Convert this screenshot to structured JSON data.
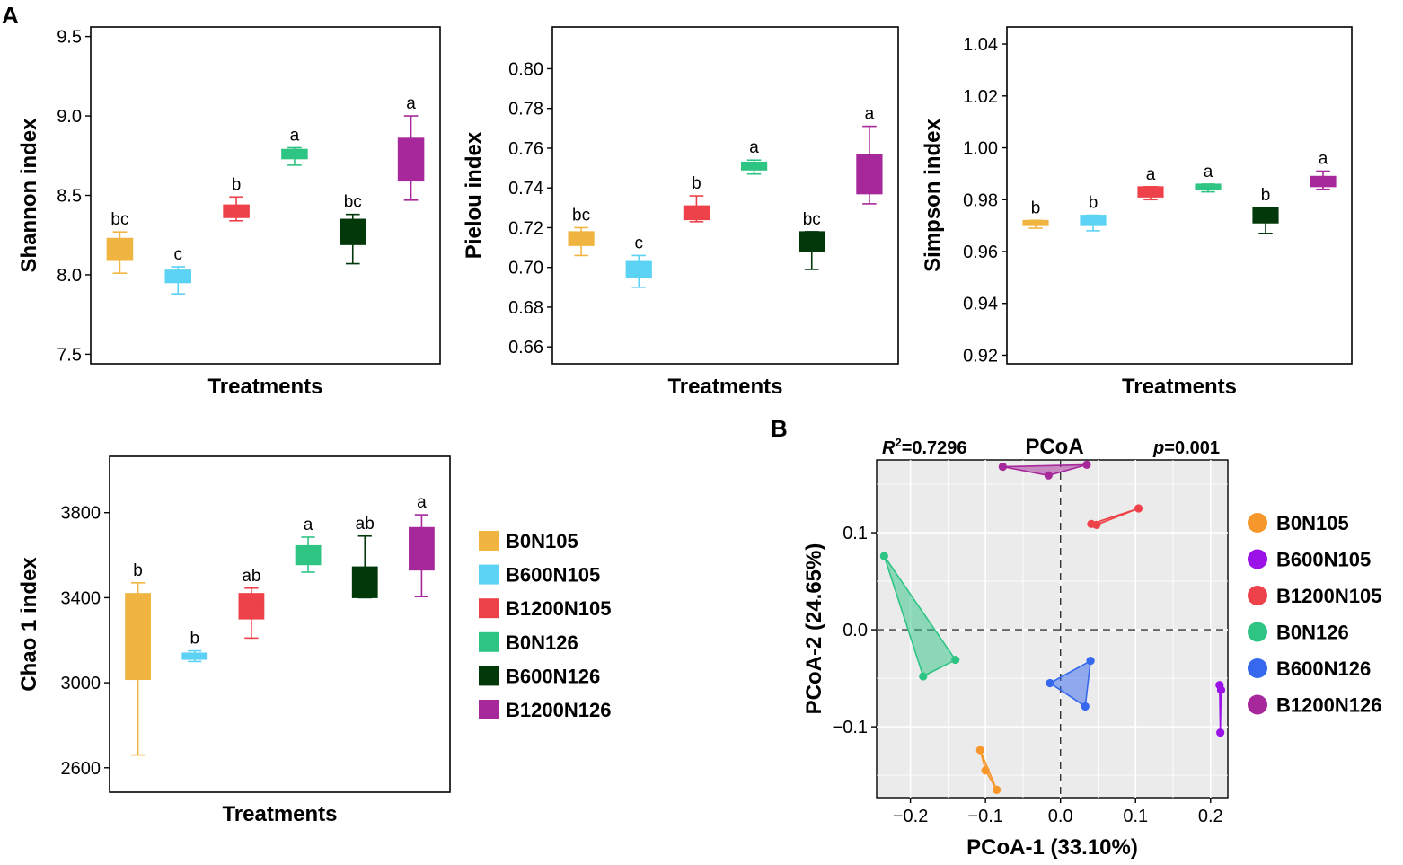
{
  "figure": {
    "panel_a_label": "A",
    "panel_b_label": "B"
  },
  "groups": [
    {
      "name": "B0N105",
      "box_color": "#F0B541",
      "point_color": "#F7962B"
    },
    {
      "name": "B600N105",
      "box_color": "#5CD2F5",
      "point_color": "#9A12E8"
    },
    {
      "name": "B1200N105",
      "box_color": "#EE4149",
      "point_color": "#EE4149"
    },
    {
      "name": "B0N126",
      "box_color": "#2EC483",
      "point_color": "#2EC483"
    },
    {
      "name": "B600N126",
      "box_color": "#03380B",
      "point_color": "#3568EE"
    },
    {
      "name": "B1200N126",
      "box_color": "#A6289A",
      "point_color": "#A6289A"
    }
  ],
  "legend_a": {
    "items": [
      "B0N105",
      "B600N105",
      "B1200N105",
      "B0N126",
      "B600N126",
      "B1200N126"
    ]
  },
  "legend_b": {
    "items": [
      "B0N105",
      "B600N105",
      "B1200N105",
      "B0N126",
      "B600N126",
      "B1200N126"
    ]
  },
  "chart_data": [
    {
      "type": "box",
      "id": "shannon",
      "title": "",
      "xlabel": "Treatments",
      "ylabel": "Shannon index",
      "ylim": [
        7.44,
        9.56
      ],
      "yticks": [
        7.5,
        8.0,
        8.5,
        9.0,
        9.5
      ],
      "ytick_labels": [
        "7.5",
        "8.0",
        "8.5",
        "9.0",
        "9.5"
      ],
      "categories": [
        "B0N105",
        "B600N105",
        "B1200N105",
        "B0N126",
        "B600N126",
        "B1200N126"
      ],
      "boxes": [
        {
          "min": 8.01,
          "q1": 8.09,
          "median": 8.16,
          "q3": 8.23,
          "max": 8.27,
          "label": "bc"
        },
        {
          "min": 7.88,
          "q1": 7.95,
          "median": 7.99,
          "q3": 8.03,
          "max": 8.05,
          "label": "c"
        },
        {
          "min": 8.34,
          "q1": 8.36,
          "median": 8.39,
          "q3": 8.44,
          "max": 8.49,
          "label": "b"
        },
        {
          "min": 8.69,
          "q1": 8.73,
          "median": 8.76,
          "q3": 8.79,
          "max": 8.8,
          "label": "a"
        },
        {
          "min": 8.07,
          "q1": 8.19,
          "median": 8.28,
          "q3": 8.35,
          "max": 8.38,
          "label": "bc"
        },
        {
          "min": 8.47,
          "q1": 8.59,
          "median": 8.72,
          "q3": 8.86,
          "max": 9.0,
          "label": "a"
        }
      ]
    },
    {
      "type": "box",
      "id": "pielou",
      "title": "",
      "xlabel": "Treatments",
      "ylabel": "Pielou index",
      "ylim": [
        0.6515,
        0.821
      ],
      "yticks": [
        0.66,
        0.68,
        0.7,
        0.72,
        0.74,
        0.76,
        0.78,
        0.8
      ],
      "ytick_labels": [
        "0.66",
        "0.68",
        "0.70",
        "0.72",
        "0.74",
        "0.76",
        "0.78",
        "0.80"
      ],
      "categories": [
        "B0N105",
        "B600N105",
        "B1200N105",
        "B0N126",
        "B600N126",
        "B1200N126"
      ],
      "boxes": [
        {
          "min": 0.706,
          "q1": 0.711,
          "median": 0.715,
          "q3": 0.718,
          "max": 0.72,
          "label": "bc"
        },
        {
          "min": 0.69,
          "q1": 0.695,
          "median": 0.699,
          "q3": 0.703,
          "max": 0.706,
          "label": "c"
        },
        {
          "min": 0.723,
          "q1": 0.724,
          "median": 0.728,
          "q3": 0.731,
          "max": 0.736,
          "label": "b"
        },
        {
          "min": 0.747,
          "q1": 0.749,
          "median": 0.751,
          "q3": 0.753,
          "max": 0.754,
          "label": "a"
        },
        {
          "min": 0.699,
          "q1": 0.708,
          "median": 0.713,
          "q3": 0.718,
          "max": 0.718,
          "label": "bc"
        },
        {
          "min": 0.732,
          "q1": 0.737,
          "median": 0.747,
          "q3": 0.757,
          "max": 0.771,
          "label": "a"
        }
      ]
    },
    {
      "type": "box",
      "id": "simpson",
      "title": "",
      "xlabel": "Treatments",
      "ylabel": "Simpson index",
      "ylim": [
        0.9167,
        1.0466
      ],
      "yticks": [
        0.92,
        0.94,
        0.96,
        0.98,
        1.0,
        1.02,
        1.04
      ],
      "ytick_labels": [
        "0.92",
        "0.94",
        "0.96",
        "0.98",
        "1.00",
        "1.02",
        "1.04"
      ],
      "categories": [
        "B0N105",
        "B600N105",
        "B1200N105",
        "B0N126",
        "B600N126",
        "B1200N126"
      ],
      "boxes": [
        {
          "min": 0.969,
          "q1": 0.97,
          "median": 0.971,
          "q3": 0.972,
          "max": 0.972,
          "label": "b"
        },
        {
          "min": 0.968,
          "q1": 0.97,
          "median": 0.972,
          "q3": 0.974,
          "max": 0.974,
          "label": "b"
        },
        {
          "min": 0.98,
          "q1": 0.981,
          "median": 0.983,
          "q3": 0.985,
          "max": 0.985,
          "label": "a"
        },
        {
          "min": 0.983,
          "q1": 0.984,
          "median": 0.985,
          "q3": 0.986,
          "max": 0.986,
          "label": "a"
        },
        {
          "min": 0.967,
          "q1": 0.971,
          "median": 0.974,
          "q3": 0.977,
          "max": 0.977,
          "label": "b"
        },
        {
          "min": 0.984,
          "q1": 0.985,
          "median": 0.987,
          "q3": 0.989,
          "max": 0.991,
          "label": "a"
        }
      ]
    },
    {
      "type": "box",
      "id": "chao1",
      "title": "",
      "xlabel": "Treatments",
      "ylabel": "Chao 1 index",
      "ylim": [
        2485,
        4065
      ],
      "yticks": [
        2600,
        3000,
        3400,
        3800
      ],
      "ytick_labels": [
        "2600",
        "3000",
        "3400",
        "3800"
      ],
      "categories": [
        "B0N105",
        "B600N105",
        "B1200N105",
        "B0N126",
        "B600N126",
        "B1200N126"
      ],
      "boxes": [
        {
          "min": 2660,
          "q1": 3015,
          "median": 3220,
          "q3": 3420,
          "max": 3470,
          "label": "b"
        },
        {
          "min": 3100,
          "q1": 3110,
          "median": 3125,
          "q3": 3140,
          "max": 3150,
          "label": "b"
        },
        {
          "min": 3210,
          "q1": 3300,
          "median": 3360,
          "q3": 3420,
          "max": 3445,
          "label": "ab"
        },
        {
          "min": 3520,
          "q1": 3555,
          "median": 3600,
          "q3": 3645,
          "max": 3685,
          "label": "a"
        },
        {
          "min": 3400,
          "q1": 3400,
          "median": 3470,
          "q3": 3545,
          "max": 3690,
          "label": "ab"
        },
        {
          "min": 3405,
          "q1": 3530,
          "median": 3630,
          "q3": 3730,
          "max": 3790,
          "label": "a"
        }
      ]
    },
    {
      "type": "scatter",
      "id": "pcoa",
      "title": "PCoA",
      "r2_prefix": "R",
      "r2_sup": "2",
      "r2_value": "=0.7296",
      "p_prefix": "p",
      "p_value": "=0.001",
      "xlabel": "PCoA-1 (33.10%)",
      "ylabel": "PCoA-2 (24.65%)",
      "xlim": [
        -0.245,
        0.223
      ],
      "ylim": [
        -0.173,
        0.175
      ],
      "xticks": [
        -0.2,
        -0.1,
        0.0,
        0.1,
        0.2
      ],
      "xtick_labels": [
        "−0.2",
        "−0.1",
        "0.0",
        "0.1",
        "0.2"
      ],
      "yticks": [
        -0.1,
        0.0,
        0.1
      ],
      "ytick_labels": [
        "−0.1",
        "0.0",
        "0.1"
      ],
      "series": [
        {
          "name": "B0N105",
          "points": [
            [
              -0.107,
              -0.124
            ],
            [
              -0.1,
              -0.145
            ],
            [
              -0.085,
              -0.165
            ]
          ]
        },
        {
          "name": "B600N105",
          "points": [
            [
              0.212,
              -0.057
            ],
            [
              0.214,
              -0.062
            ],
            [
              0.213,
              -0.106
            ]
          ]
        },
        {
          "name": "B1200N105",
          "points": [
            [
              0.041,
              0.109
            ],
            [
              0.048,
              0.108
            ],
            [
              0.104,
              0.125
            ]
          ]
        },
        {
          "name": "B0N126",
          "points": [
            [
              -0.235,
              0.076
            ],
            [
              -0.14,
              -0.031
            ],
            [
              -0.183,
              -0.048
            ]
          ]
        },
        {
          "name": "B600N126",
          "points": [
            [
              -0.014,
              -0.055
            ],
            [
              0.04,
              -0.032
            ],
            [
              0.033,
              -0.079
            ]
          ]
        },
        {
          "name": "B1200N126",
          "points": [
            [
              -0.077,
              0.168
            ],
            [
              -0.016,
              0.159
            ],
            [
              0.035,
              0.17
            ]
          ]
        }
      ]
    }
  ]
}
